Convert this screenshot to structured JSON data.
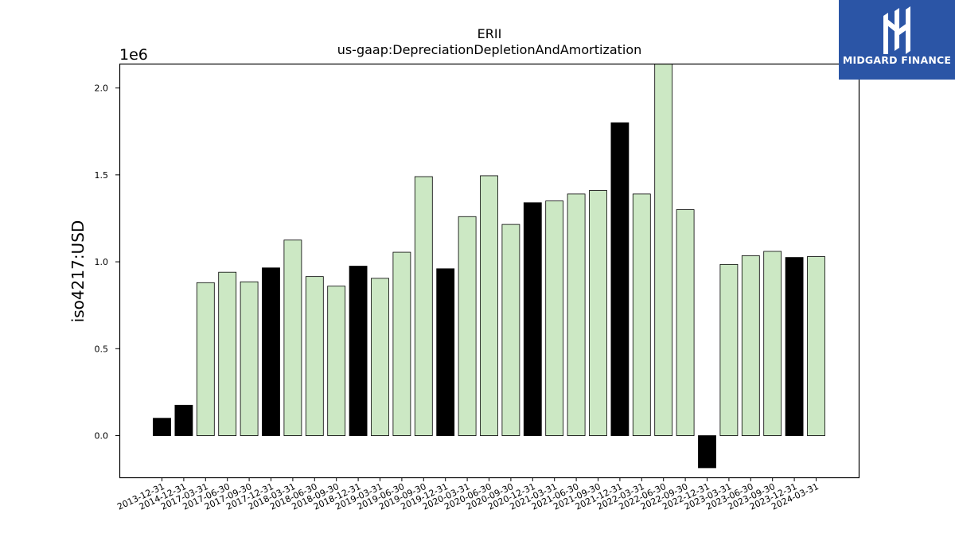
{
  "chart_data": {
    "type": "bar",
    "title": "ERII",
    "subtitle": "us-gaap:DepreciationDepletionAndAmortization",
    "ylabel": "iso4217:USD",
    "xlabel": "",
    "offset_label": "1e6",
    "ylim": [
      -0.24,
      2.14
    ],
    "yticks": [
      0.0,
      0.5,
      1.0,
      1.5,
      2.0
    ],
    "ytick_labels": [
      "0.0",
      "0.5",
      "1.0",
      "1.5",
      "2.0"
    ],
    "grid": false,
    "legend": "none",
    "colors": {
      "annual": "#000000",
      "quarterly": "#cce8c4",
      "edge": "#000000"
    },
    "categories": [
      "2013-12-31",
      "2014-12-31",
      "2017-03-31",
      "2017-06-30",
      "2017-09-30",
      "2017-12-31",
      "2018-03-31",
      "2018-06-30",
      "2018-09-30",
      "2018-12-31",
      "2019-03-31",
      "2019-06-30",
      "2019-09-30",
      "2019-12-31",
      "2020-03-31",
      "2020-06-30",
      "2020-09-30",
      "2020-12-31",
      "2021-03-31",
      "2021-06-30",
      "2021-09-30",
      "2021-12-31",
      "2022-03-31",
      "2022-06-30",
      "2022-09-30",
      "2022-12-31",
      "2023-03-31",
      "2023-06-30",
      "2023-09-30",
      "2023-12-31",
      "2024-03-31"
    ],
    "values": [
      0.1,
      0.175,
      0.88,
      0.94,
      0.885,
      0.965,
      1.125,
      0.915,
      0.86,
      0.975,
      0.905,
      1.055,
      1.49,
      0.96,
      1.26,
      1.495,
      1.215,
      1.34,
      1.35,
      1.39,
      1.41,
      1.8,
      1.39,
      2.15,
      1.3,
      -0.185,
      0.985,
      1.035,
      1.06,
      1.025,
      1.03
    ],
    "bar_types": [
      "annual",
      "annual",
      "quarterly",
      "quarterly",
      "quarterly",
      "annual",
      "quarterly",
      "quarterly",
      "quarterly",
      "annual",
      "quarterly",
      "quarterly",
      "quarterly",
      "annual",
      "quarterly",
      "quarterly",
      "quarterly",
      "annual",
      "quarterly",
      "quarterly",
      "quarterly",
      "annual",
      "quarterly",
      "quarterly",
      "quarterly",
      "annual",
      "quarterly",
      "quarterly",
      "quarterly",
      "annual",
      "quarterly"
    ]
  },
  "logo": {
    "text": "MIDGARD FINANCE",
    "icon": "midgard-logo-icon"
  }
}
